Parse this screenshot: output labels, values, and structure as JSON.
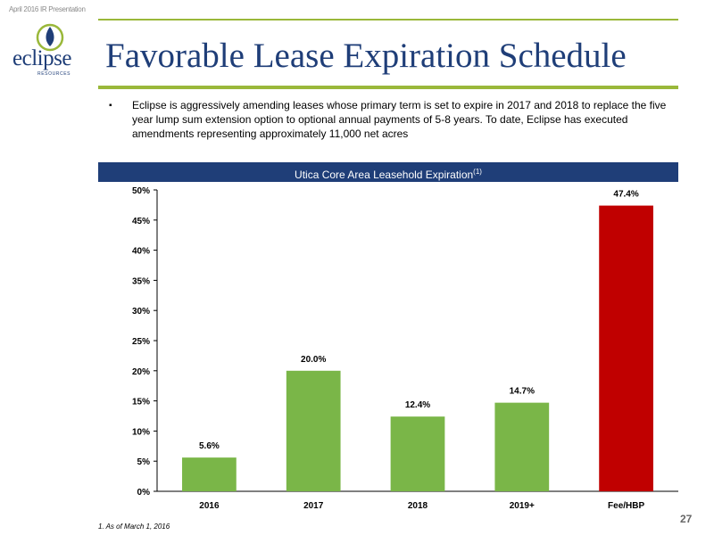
{
  "header_note": "April 2016 IR Presentation",
  "logo": {
    "name": "eclipse",
    "sub": "RESOURCES"
  },
  "title": "Favorable Lease Expiration Schedule",
  "bullet": "Eclipse is aggressively amending leases whose primary term is set to expire in 2017 and 2018 to replace the five year lump sum extension option to optional annual payments of 5-8 years.  To date, Eclipse has executed amendments representing approximately 11,000 net acres",
  "chart_header": {
    "title": "Utica Core Area Leasehold Expiration",
    "superscript": "(1)"
  },
  "colors": {
    "navy": "#1f3e78",
    "green_bar": "#7ab648",
    "red_bar": "#c00000",
    "accent": "#9ab83a"
  },
  "chart_data": {
    "type": "bar",
    "title": "Utica Core Area Leasehold Expiration(1)",
    "categories": [
      "2016",
      "2017",
      "2018",
      "2019+",
      "Fee/HBP"
    ],
    "values": [
      5.6,
      20.0,
      12.4,
      14.7,
      47.4
    ],
    "value_labels": [
      "5.6%",
      "20.0%",
      "12.4%",
      "14.7%",
      "47.4%"
    ],
    "bar_colors": [
      "#7ab648",
      "#7ab648",
      "#7ab648",
      "#7ab648",
      "#c00000"
    ],
    "ylim": [
      0,
      50
    ],
    "yticks": [
      0,
      5,
      10,
      15,
      20,
      25,
      30,
      35,
      40,
      45,
      50
    ],
    "ytick_labels": [
      "0%",
      "5%",
      "10%",
      "15%",
      "20%",
      "25%",
      "30%",
      "35%",
      "40%",
      "45%",
      "50%"
    ],
    "xlabel": "",
    "ylabel": "",
    "grid": false,
    "legend": "none"
  },
  "footnote": "1.  As of March 1, 2016",
  "page_number": "27"
}
